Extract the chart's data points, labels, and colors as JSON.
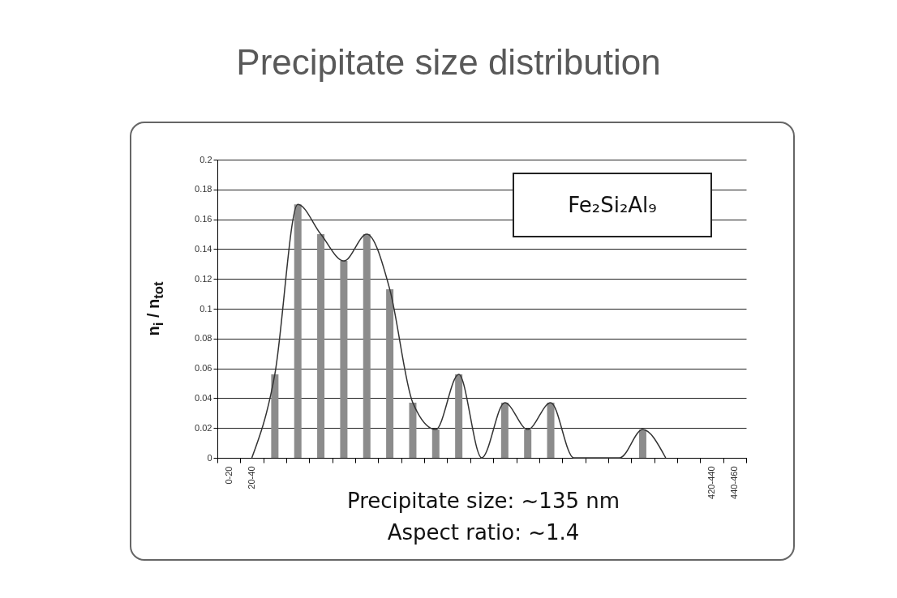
{
  "chart_data": {
    "type": "bar",
    "title": "Precipitate size distribution",
    "ylabel": "n$_{i}$ / n$_{tot}$",
    "categories": [
      "0-20",
      "20-40",
      null,
      null,
      null,
      null,
      null,
      null,
      null,
      null,
      null,
      null,
      null,
      null,
      null,
      null,
      null,
      null,
      null,
      null,
      null,
      "420-440",
      "440-460"
    ],
    "series": [
      {
        "color": "#8c8c8c",
        "values": [
          0,
          0,
          0.056,
          0.17,
          0.15,
          0.132,
          0.15,
          0.113,
          0.037,
          0.019,
          0.056,
          0,
          0.037,
          0.019,
          0.037,
          0,
          0,
          0,
          0.019,
          0,
          0,
          0,
          0
        ]
      },
      {
        "type": "line",
        "color": "#333333",
        "values": [
          null,
          0,
          0.056,
          0.17,
          0.15,
          0.132,
          0.15,
          0.113,
          0.037,
          0.019,
          0.056,
          0,
          0.037,
          0.019,
          0.037,
          0,
          0,
          0,
          0.019,
          0,
          null,
          null,
          null
        ]
      }
    ],
    "ylim": [
      0,
      0.2
    ],
    "yticks": [
      0,
      0.02,
      0.04,
      0.06,
      0.08,
      0.1,
      0.12,
      0.14,
      0.16,
      0.18,
      0.2
    ],
    "grid": "y",
    "marker": "none",
    "line_style": "solid",
    "annotations": [
      "Fe₂Si₂Al₉",
      "Precipitate size: ~135 nm",
      "Aspect ratio: ~1.4"
    ]
  }
}
